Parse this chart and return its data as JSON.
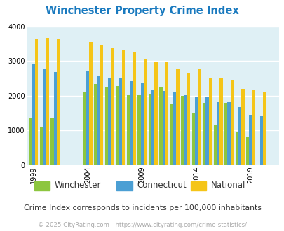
{
  "title": "Winchester Property Crime Index",
  "title_color": "#1a7abf",
  "subtitle": "Crime Index corresponds to incidents per 100,000 inhabitants",
  "footer": "© 2025 CityRating.com - https://www.cityrating.com/crime-statistics/",
  "years": [
    1999,
    2000,
    2001,
    2002,
    2003,
    2004,
    2005,
    2006,
    2007,
    2008,
    2009,
    2010,
    2011,
    2012,
    2013,
    2014,
    2015,
    2016,
    2017,
    2018,
    2019,
    2020,
    2021
  ],
  "winchester": [
    1380,
    1100,
    1350,
    0,
    0,
    2090,
    2350,
    2260,
    2280,
    2020,
    2020,
    2030,
    2260,
    1750,
    2000,
    1490,
    1800,
    1150,
    1790,
    950,
    820,
    0,
    0
  ],
  "connecticut": [
    2920,
    2790,
    2680,
    0,
    0,
    2700,
    2590,
    2510,
    2510,
    2420,
    2370,
    2180,
    2150,
    2130,
    2010,
    1970,
    1950,
    1820,
    1810,
    1680,
    1450,
    1440,
    0
  ],
  "national": [
    3640,
    3680,
    3640,
    0,
    0,
    3550,
    3450,
    3390,
    3330,
    3250,
    3070,
    2980,
    2960,
    2760,
    2640,
    2760,
    2530,
    2520,
    2470,
    2200,
    2180,
    2120,
    0
  ],
  "winchester_color": "#8dc63f",
  "connecticut_color": "#4b9fd4",
  "national_color": "#f5c518",
  "bg_color": "#dff0f5",
  "ylim": [
    0,
    4000
  ],
  "yticks": [
    0,
    1000,
    2000,
    3000,
    4000
  ],
  "xtick_years": [
    1999,
    2004,
    2009,
    2014,
    2019
  ],
  "bar_width": 0.28,
  "legend_labels": [
    "Winchester",
    "Connecticut",
    "National"
  ],
  "legend_colors": [
    "#8dc63f",
    "#4b9fd4",
    "#f5c518"
  ]
}
